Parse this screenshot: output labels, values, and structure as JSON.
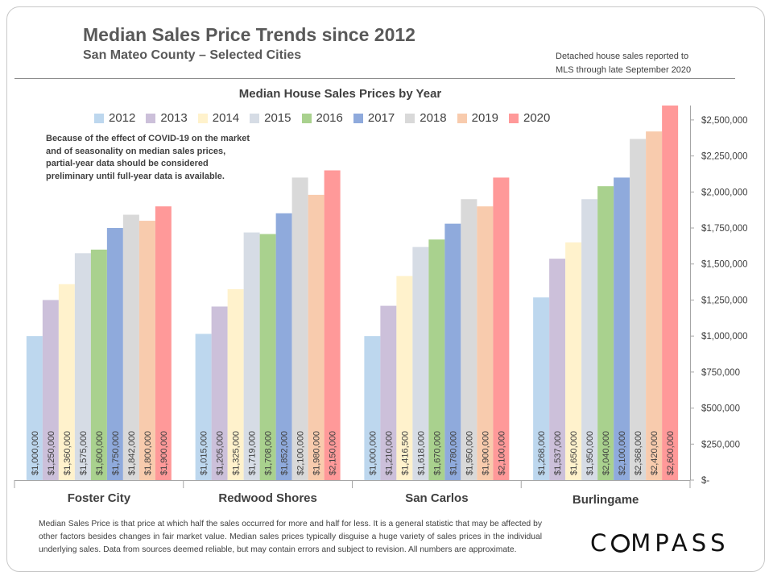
{
  "header": {
    "title": "Median Sales Price Trends since 2012",
    "subtitle": "San Mateo County – Selected Cities",
    "note_line1": "Detached house sales reported to",
    "note_line2": "MLS through late September 2020"
  },
  "chart_data": {
    "type": "bar",
    "title": "Median House Sales Prices by Year",
    "categories": [
      "Foster City",
      "Redwood Shores",
      "San Carlos",
      "Burlingame"
    ],
    "series": [
      {
        "name": "2012",
        "color": "#bdd7ee",
        "values": [
          1000000,
          1015000,
          1000000,
          1268000
        ],
        "labels": [
          "$1,000,000",
          "$1,015,000",
          "$1,000,000",
          "$1,268,000"
        ]
      },
      {
        "name": "2013",
        "color": "#ccc0da",
        "values": [
          1250000,
          1205000,
          1210000,
          1537000
        ],
        "labels": [
          "$1,250,000",
          "$1,205,000",
          "$1,210,000",
          "$1,537,000"
        ]
      },
      {
        "name": "2014",
        "color": "#fff2cc",
        "values": [
          1360000,
          1325000,
          1416500,
          1650000
        ],
        "labels": [
          "$1,360,000",
          "$1,325,000",
          "$1,416,500",
          "$1,650,000"
        ]
      },
      {
        "name": "2015",
        "color": "#d6dce5",
        "values": [
          1575000,
          1719000,
          1618000,
          1950000
        ],
        "labels": [
          "$1,575,000",
          "$1,719,000",
          "$1,618,000",
          "$1,950,000"
        ]
      },
      {
        "name": "2016",
        "color": "#a9d18e",
        "values": [
          1600000,
          1708000,
          1670000,
          2040000
        ],
        "labels": [
          "$1,600,000",
          "$1,708,000",
          "$1,670,000",
          "$2,040,000"
        ]
      },
      {
        "name": "2017",
        "color": "#8faadc",
        "values": [
          1750000,
          1852000,
          1780000,
          2100000
        ],
        "labels": [
          "$1,750,000",
          "$1,852,000",
          "$1,780,000",
          "$2,100,000"
        ]
      },
      {
        "name": "2018",
        "color": "#d9d9d9",
        "values": [
          1842000,
          2100000,
          1950000,
          2368000
        ],
        "labels": [
          "$1,842,000",
          "$2,100,000",
          "$1,950,000",
          "$2,368,000"
        ]
      },
      {
        "name": "2019",
        "color": "#f8cbad",
        "values": [
          1800000,
          1980000,
          1900000,
          2420000
        ],
        "labels": [
          "$1,800,000",
          "$1,980,000",
          "$1,900,000",
          "$2,420,000"
        ]
      },
      {
        "name": "2020",
        "color": "#ff9999",
        "values": [
          1900000,
          2150000,
          2100000,
          2600000
        ],
        "labels": [
          "$1,900,000",
          "$2,150,000",
          "$2,100,000",
          "$2,600,000"
        ]
      }
    ],
    "ylim": [
      0,
      2600000
    ],
    "yticks": [
      0,
      250000,
      500000,
      750000,
      1000000,
      1250000,
      1500000,
      1750000,
      2000000,
      2250000,
      2500000
    ],
    "ytick_labels": [
      "$-",
      "$250,000",
      "$500,000",
      "$750,000",
      "$1,000,000",
      "$1,250,000",
      "$1,500,000",
      "$1,750,000",
      "$2,000,000",
      "$2,250,000",
      "$2,500,000"
    ],
    "y_axis_side": "right",
    "grid": false,
    "legend_position": "top"
  },
  "covid_note": "Because of the effect of COVID-19 on the market and of seasonality on median sales prices, partial-year data should be considered preliminary until full-year data is available.",
  "footnote": "Median Sales Price is that price at which half the sales occurred for more and half for less. It is a general statistic that may be affected by other factors besides changes in fair market value. Median sales prices typically disguise a huge variety of sales prices in the individual underlying sales. Data from sources deemed reliable, but may contain errors and subject to revision.  All numbers are approximate.",
  "logo": {
    "before": "C",
    "after": "MPASS"
  }
}
